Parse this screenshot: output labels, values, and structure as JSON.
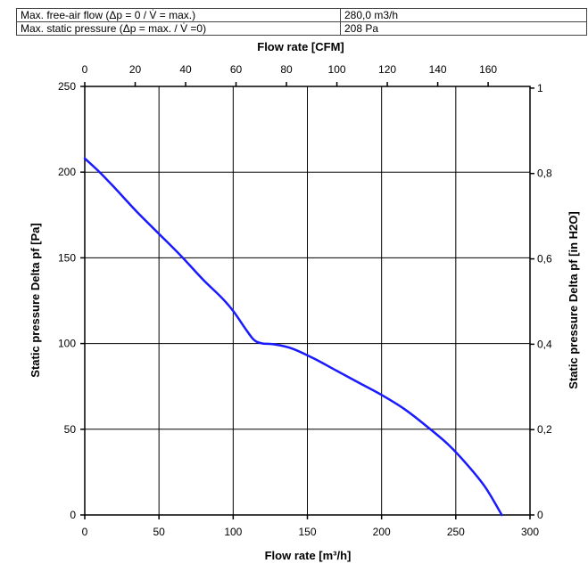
{
  "spec_table": {
    "rows": [
      {
        "label": "Max. free-air flow (Δp = 0 / V̇ = max.)",
        "value": "280,0 m3/h"
      },
      {
        "label": "Max. static pressure (Δp = max. / V̇ =0)",
        "value": "208 Pa"
      }
    ]
  },
  "chart_data": {
    "type": "line",
    "title": "",
    "xlabel": "Flow rate [m³/h]",
    "ylabel": "Static pressure Delta pf [Pa]",
    "x2label": "Flow rate [CFM]",
    "y2label": "Static pressure Delta pf [in H2O]",
    "xlim": [
      0,
      300
    ],
    "ylim": [
      0,
      250
    ],
    "x2lim": [
      0,
      176.6
    ],
    "y2lim": [
      0,
      1.004
    ],
    "grid": true,
    "x_ticks": [
      "0",
      "50",
      "100",
      "150",
      "200",
      "250",
      "300"
    ],
    "y_ticks": [
      "0",
      "50",
      "100",
      "150",
      "200",
      "250"
    ],
    "x2_ticks": [
      "0",
      "20",
      "40",
      "60",
      "80",
      "100",
      "120",
      "140",
      "160"
    ],
    "y2_ticks": [
      "0",
      "0,2",
      "0,4",
      "0,6",
      "0,8",
      "1"
    ],
    "line_color": "#1a1aff",
    "series": [
      {
        "x": [
          0,
          10,
          20,
          35,
          50,
          65,
          80,
          92,
          100,
          108,
          113,
          116,
          120,
          128,
          140,
          155,
          170,
          185,
          200,
          215,
          230,
          245,
          258,
          270,
          281
        ],
        "y": [
          208,
          200,
          191,
          177,
          164,
          151,
          137,
          127,
          119,
          109,
          103,
          101,
          100,
          99.5,
          97,
          91,
          84,
          77,
          70,
          62,
          52,
          41,
          29,
          16,
          0
        ]
      }
    ]
  }
}
